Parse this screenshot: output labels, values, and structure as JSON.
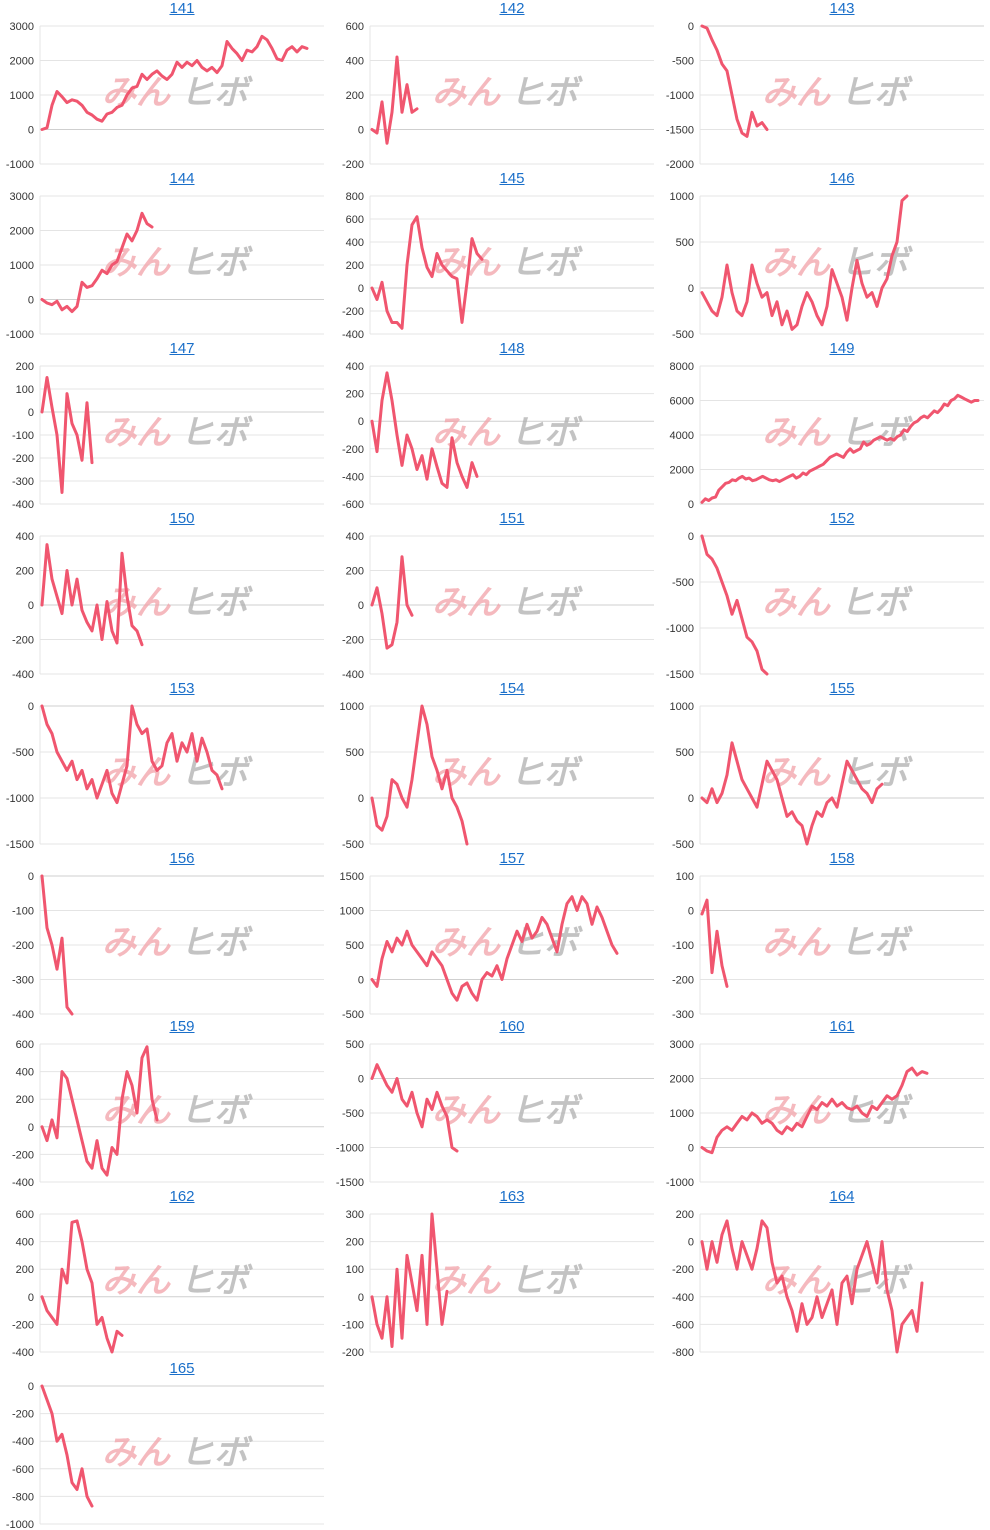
{
  "colors": {
    "line": "#f0566f",
    "grid": "#e4e4e4",
    "title": "#1a6fc9",
    "axis": "#333333"
  },
  "watermark": {
    "part1": "みん",
    "part2": "ヒボ"
  },
  "chart_data": [
    {
      "type": "line",
      "title": "141",
      "ylim": [
        -1000,
        3000
      ],
      "yticks": [
        3000,
        2000,
        1000,
        0,
        -1000
      ],
      "values": [
        0,
        50,
        700,
        1100,
        950,
        780,
        860,
        820,
        700,
        500,
        420,
        300,
        240,
        450,
        500,
        640,
        700,
        1000,
        1200,
        1250,
        1600,
        1450,
        1600,
        1700,
        1550,
        1450,
        1600,
        1950,
        1800,
        1950,
        1850,
        2000,
        1800,
        1700,
        1800,
        1650,
        1850,
        2550,
        2350,
        2200,
        2000,
        2300,
        2250,
        2400,
        2700,
        2600,
        2350,
        2050,
        2000,
        2300,
        2400,
        2250,
        2400,
        2350
      ]
    },
    {
      "type": "line",
      "title": "142",
      "ylim": [
        -200,
        600
      ],
      "yticks": [
        600,
        400,
        200,
        0,
        -200
      ],
      "values": [
        0,
        -20,
        160,
        -80,
        100,
        420,
        100,
        260,
        100,
        120
      ]
    },
    {
      "type": "line",
      "title": "143",
      "ylim": [
        -2000,
        0
      ],
      "yticks": [
        0,
        -500,
        -1000,
        -1500,
        -2000
      ],
      "values": [
        0,
        -30,
        -200,
        -350,
        -550,
        -650,
        -1000,
        -1350,
        -1550,
        -1600,
        -1250,
        -1450,
        -1400,
        -1500
      ]
    },
    {
      "type": "line",
      "title": "144",
      "ylim": [
        -1000,
        3000
      ],
      "yticks": [
        3000,
        2000,
        1000,
        0,
        -1000
      ],
      "values": [
        0,
        -100,
        -150,
        -50,
        -300,
        -200,
        -350,
        -200,
        500,
        350,
        400,
        600,
        850,
        750,
        1000,
        1100,
        1500,
        1900,
        1700,
        2000,
        2500,
        2200,
        2100
      ]
    },
    {
      "type": "line",
      "title": "145",
      "ylim": [
        -400,
        800
      ],
      "yticks": [
        800,
        600,
        400,
        200,
        0,
        -200,
        -400
      ],
      "values": [
        0,
        -100,
        50,
        -200,
        -300,
        -300,
        -350,
        200,
        550,
        620,
        350,
        180,
        100,
        300,
        200,
        150,
        100,
        80,
        -300,
        50,
        430,
        300,
        250
      ]
    },
    {
      "type": "line",
      "title": "146",
      "ylim": [
        -500,
        1000
      ],
      "yticks": [
        1000,
        500,
        0,
        -500
      ],
      "values": [
        -50,
        -150,
        -250,
        -300,
        -100,
        250,
        -50,
        -250,
        -300,
        -150,
        250,
        50,
        -100,
        -50,
        -300,
        -150,
        -400,
        -250,
        -450,
        -400,
        -200,
        -50,
        -150,
        -300,
        -400,
        -200,
        200,
        50,
        -100,
        -350,
        0,
        300,
        50,
        -100,
        -50,
        -200,
        0,
        100,
        350,
        500,
        950,
        1000
      ]
    },
    {
      "type": "line",
      "title": "147",
      "ylim": [
        -400,
        200
      ],
      "yticks": [
        200,
        100,
        0,
        -100,
        -200,
        -300,
        -400
      ],
      "values": [
        0,
        150,
        20,
        -100,
        -350,
        80,
        -50,
        -100,
        -210,
        40,
        -220
      ]
    },
    {
      "type": "line",
      "title": "148",
      "ylim": [
        -600,
        400
      ],
      "yticks": [
        400,
        200,
        0,
        -200,
        -400,
        -600
      ],
      "values": [
        0,
        -220,
        150,
        350,
        150,
        -100,
        -320,
        -100,
        -200,
        -350,
        -250,
        -420,
        -200,
        -330,
        -450,
        -480,
        -120,
        -300,
        -400,
        -480,
        -300,
        -400
      ]
    },
    {
      "type": "line",
      "title": "149",
      "ylim": [
        0,
        8000
      ],
      "yticks": [
        8000,
        6000,
        4000,
        2000,
        0
      ],
      "values": [
        100,
        300,
        200,
        350,
        400,
        800,
        1000,
        1200,
        1250,
        1400,
        1350,
        1500,
        1600,
        1450,
        1500,
        1350,
        1400,
        1500,
        1600,
        1500,
        1400,
        1350,
        1400,
        1300,
        1400,
        1500,
        1600,
        1700,
        1500,
        1600,
        1800,
        1700,
        1900,
        2000,
        2100,
        2200,
        2300,
        2500,
        2700,
        2800,
        2900,
        2800,
        2700,
        3000,
        3200,
        3000,
        3100,
        3200,
        3600,
        3400,
        3500,
        3700,
        3800,
        3900,
        3800,
        3700,
        3800,
        3700,
        3900,
        4000,
        4300,
        4200,
        4500,
        4700,
        4800,
        5000,
        5100,
        5000,
        5200,
        5400,
        5300,
        5500,
        5800,
        5700,
        6000,
        6100,
        6300,
        6200,
        6100,
        6000,
        5900,
        6000,
        6000
      ]
    },
    {
      "type": "line",
      "title": "150",
      "ylim": [
        -400,
        400
      ],
      "yticks": [
        400,
        200,
        0,
        -200,
        -400
      ],
      "values": [
        0,
        350,
        150,
        50,
        -50,
        200,
        0,
        150,
        -30,
        -100,
        -150,
        0,
        -200,
        20,
        -150,
        -220,
        300,
        50,
        -120,
        -150,
        -230
      ]
    },
    {
      "type": "line",
      "title": "151",
      "ylim": [
        -400,
        400
      ],
      "yticks": [
        400,
        200,
        0,
        -200,
        -400
      ],
      "values": [
        0,
        100,
        -50,
        -250,
        -230,
        -100,
        280,
        0,
        -60
      ]
    },
    {
      "type": "line",
      "title": "152",
      "ylim": [
        -1500,
        0
      ],
      "yticks": [
        0,
        -500,
        -1000,
        -1500
      ],
      "values": [
        0,
        -200,
        -250,
        -350,
        -500,
        -650,
        -850,
        -700,
        -900,
        -1100,
        -1150,
        -1250,
        -1450,
        -1500
      ]
    },
    {
      "type": "line",
      "title": "153",
      "ylim": [
        -1500,
        0
      ],
      "yticks": [
        0,
        -500,
        -1000,
        -1500
      ],
      "values": [
        0,
        -200,
        -300,
        -500,
        -600,
        -700,
        -600,
        -800,
        -700,
        -900,
        -800,
        -1000,
        -850,
        -700,
        -950,
        -1050,
        -850,
        -650,
        0,
        -200,
        -300,
        -250,
        -600,
        -700,
        -650,
        -400,
        -300,
        -600,
        -400,
        -500,
        -300,
        -600,
        -350,
        -500,
        -700,
        -750,
        -900
      ]
    },
    {
      "type": "line",
      "title": "154",
      "ylim": [
        -500,
        1000
      ],
      "yticks": [
        1000,
        500,
        0,
        -500
      ],
      "values": [
        0,
        -300,
        -350,
        -200,
        200,
        150,
        0,
        -100,
        200,
        600,
        1000,
        800,
        450,
        300,
        100,
        300,
        0,
        -100,
        -250,
        -500
      ]
    },
    {
      "type": "line",
      "title": "155",
      "ylim": [
        -500,
        1000
      ],
      "yticks": [
        1000,
        500,
        0,
        -500
      ],
      "values": [
        0,
        -50,
        100,
        -50,
        50,
        250,
        600,
        400,
        200,
        100,
        0,
        -100,
        150,
        400,
        300,
        200,
        0,
        -200,
        -150,
        -250,
        -300,
        -500,
        -300,
        -150,
        -200,
        -50,
        0,
        -100,
        150,
        400,
        300,
        200,
        100,
        50,
        -50,
        100,
        150
      ]
    },
    {
      "type": "line",
      "title": "156",
      "ylim": [
        -400,
        0
      ],
      "yticks": [
        0,
        -100,
        -200,
        -300,
        -400
      ],
      "values": [
        0,
        -150,
        -200,
        -270,
        -180,
        -380,
        -400
      ]
    },
    {
      "type": "line",
      "title": "157",
      "ylim": [
        -500,
        1500
      ],
      "yticks": [
        1500,
        1000,
        500,
        0,
        -500
      ],
      "values": [
        0,
        -100,
        300,
        550,
        400,
        600,
        500,
        700,
        500,
        400,
        300,
        200,
        400,
        300,
        200,
        0,
        -200,
        -300,
        -100,
        -50,
        -200,
        -300,
        0,
        100,
        50,
        200,
        0,
        300,
        500,
        700,
        550,
        800,
        600,
        700,
        900,
        800,
        600,
        400,
        800,
        1100,
        1200,
        1000,
        1200,
        1100,
        800,
        1050,
        900,
        700,
        500,
        380
      ]
    },
    {
      "type": "line",
      "title": "158",
      "ylim": [
        -300,
        100
      ],
      "yticks": [
        100,
        0,
        -100,
        -200,
        -300
      ],
      "values": [
        -10,
        30,
        -180,
        -60,
        -160,
        -220
      ]
    },
    {
      "type": "line",
      "title": "159",
      "ylim": [
        -400,
        600
      ],
      "yticks": [
        600,
        400,
        200,
        0,
        -200,
        -400
      ],
      "values": [
        0,
        -100,
        50,
        -80,
        400,
        350,
        200,
        50,
        -100,
        -250,
        -300,
        -100,
        -300,
        -350,
        -150,
        -200,
        200,
        400,
        300,
        100,
        500,
        580,
        200,
        50
      ]
    },
    {
      "type": "line",
      "title": "160",
      "ylim": [
        -1500,
        500
      ],
      "yticks": [
        500,
        0,
        -500,
        -1000,
        -1500
      ],
      "values": [
        0,
        200,
        50,
        -100,
        -200,
        0,
        -300,
        -400,
        -200,
        -500,
        -700,
        -300,
        -450,
        -200,
        -400,
        -550,
        -1000,
        -1050
      ]
    },
    {
      "type": "line",
      "title": "161",
      "ylim": [
        -1000,
        3000
      ],
      "yticks": [
        3000,
        2000,
        1000,
        0,
        -1000
      ],
      "values": [
        0,
        -100,
        -150,
        300,
        500,
        600,
        500,
        700,
        900,
        800,
        1000,
        900,
        700,
        800,
        700,
        500,
        400,
        600,
        500,
        700,
        600,
        900,
        1200,
        1100,
        1300,
        1200,
        1400,
        1200,
        1300,
        1150,
        1100,
        1200,
        1000,
        900,
        1200,
        1100,
        1300,
        1500,
        1400,
        1500,
        1800,
        2200,
        2300,
        2100,
        2200,
        2150
      ]
    },
    {
      "type": "line",
      "title": "162",
      "ylim": [
        -400,
        600
      ],
      "yticks": [
        600,
        400,
        200,
        0,
        -200,
        -400
      ],
      "values": [
        0,
        -100,
        -150,
        -200,
        200,
        100,
        540,
        550,
        400,
        200,
        100,
        -200,
        -150,
        -300,
        -400,
        -250,
        -280
      ]
    },
    {
      "type": "line",
      "title": "163",
      "ylim": [
        -200,
        300
      ],
      "yticks": [
        300,
        200,
        100,
        0,
        -100,
        -200
      ],
      "values": [
        0,
        -100,
        -150,
        0,
        -180,
        100,
        -150,
        150,
        50,
        -50,
        150,
        -100,
        300,
        100,
        -100,
        20
      ]
    },
    {
      "type": "line",
      "title": "164",
      "ylim": [
        -800,
        200
      ],
      "yticks": [
        200,
        0,
        -200,
        -400,
        -600,
        -800
      ],
      "values": [
        0,
        -200,
        0,
        -150,
        50,
        150,
        -50,
        -200,
        0,
        -100,
        -200,
        -50,
        150,
        100,
        -150,
        -300,
        -250,
        -400,
        -500,
        -650,
        -450,
        -600,
        -550,
        -400,
        -550,
        -450,
        -350,
        -600,
        -300,
        -250,
        -450,
        -200,
        -100,
        0,
        -150,
        -300,
        0,
        -350,
        -500,
        -800,
        -600,
        -550,
        -500,
        -650,
        -300
      ]
    },
    {
      "type": "line",
      "title": "165",
      "ylim": [
        -1000,
        0
      ],
      "yticks": [
        0,
        -200,
        -400,
        -600,
        -800,
        -1000
      ],
      "values": [
        0,
        -100,
        -200,
        -400,
        -350,
        -500,
        -700,
        -750,
        -600,
        -800,
        -870
      ]
    }
  ]
}
